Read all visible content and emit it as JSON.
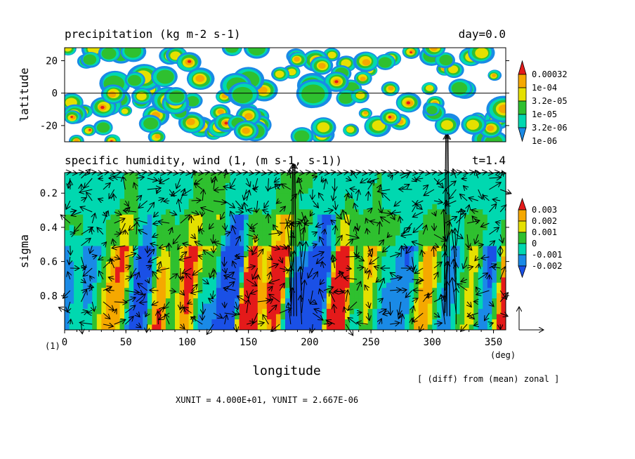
{
  "chart_data": [
    {
      "type": "heatmap",
      "title": "precipitation (kg m-2 s-1)",
      "time_label": "day=0.0",
      "ylabel": "latitude",
      "xlim": [
        0,
        360
      ],
      "ylim": [
        -30,
        28
      ],
      "yticks": [
        "20",
        "0",
        "-20"
      ],
      "ytick_values": [
        20,
        0,
        -20
      ],
      "colorbar": {
        "levels": [
          "0.00032",
          "1e-04",
          "3.2e-05",
          "1e-05",
          "3.2e-06",
          "1e-06"
        ],
        "colors": [
          "#e41a1a",
          "#f5a800",
          "#e5e000",
          "#2fc02f",
          "#00d8b0",
          "#1a8ae6"
        ]
      },
      "zero_line": 0,
      "seed": 7
    },
    {
      "type": "heatmap",
      "title": "specific humidity, wind (1, (m s-1, s-1))",
      "time_label": "t=1.4",
      "ylabel": "sigma",
      "xlabel": "longitude",
      "xunit_label": "(deg)",
      "panel_index": "(1)",
      "xlim": [
        0,
        360
      ],
      "ylim": [
        0.08,
        1.0
      ],
      "xticks": [
        "0",
        "50",
        "100",
        "150",
        "200",
        "250",
        "300",
        "350"
      ],
      "xtick_values": [
        0,
        50,
        100,
        150,
        200,
        250,
        300,
        350
      ],
      "yticks": [
        "0.2",
        "0.4",
        "0.6",
        "0.8"
      ],
      "ytick_values": [
        0.2,
        0.4,
        0.6,
        0.8
      ],
      "colorbar": {
        "levels": [
          "0.003",
          "0.002",
          "0.001",
          "0",
          "-0.001",
          "-0.002"
        ],
        "colors": [
          "#e41a1a",
          "#f5a800",
          "#e5e000",
          "#2fc02f",
          "#00d8b0",
          "#1a8ae6",
          "#1a50e6"
        ]
      },
      "seed": 13
    }
  ],
  "footer": {
    "note": "[ (diff) from (mean) zonal ]",
    "units": "XUNIT = 4.000E+01, YUNIT = 2.667E-06"
  }
}
